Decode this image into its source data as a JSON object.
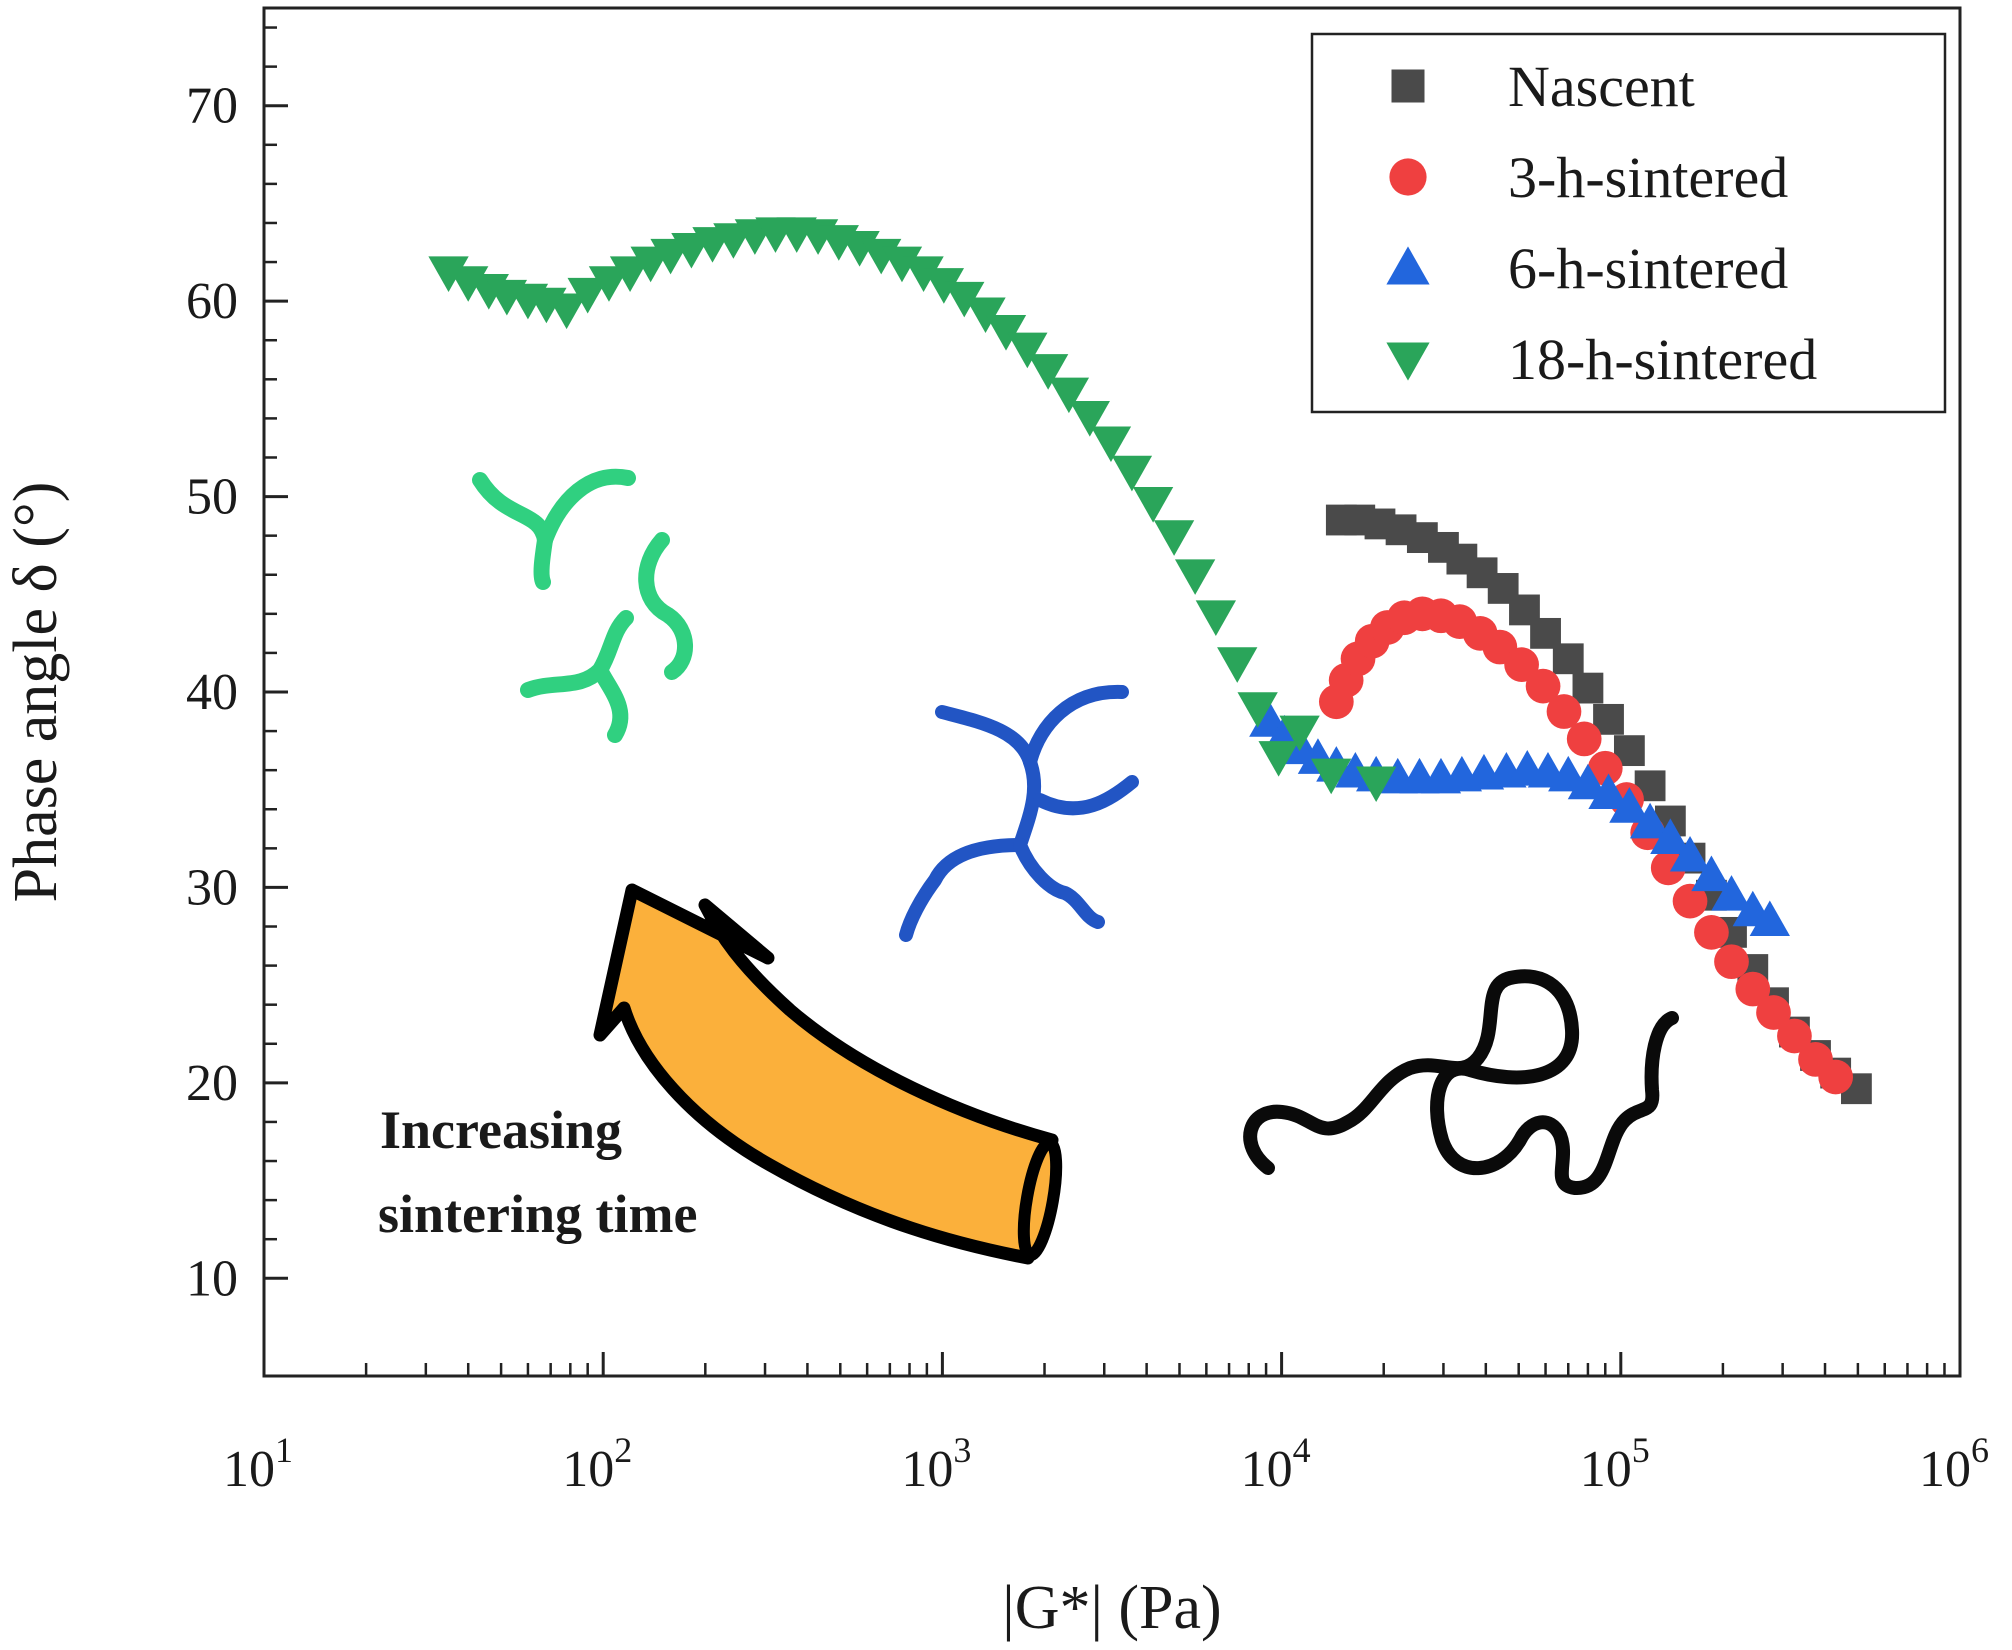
{
  "chart_data": {
    "type": "scatter",
    "xlabel": "|G*| (Pa)",
    "ylabel": "Phase angle δ (°)",
    "x_scale": "log",
    "xlim": [
      10,
      1000000
    ],
    "ylim": [
      5,
      75
    ],
    "x_ticks": [
      {
        "value": 10,
        "base": "10",
        "exp": "1"
      },
      {
        "value": 100,
        "base": "10",
        "exp": "2"
      },
      {
        "value": 1000,
        "base": "10",
        "exp": "3"
      },
      {
        "value": 10000,
        "base": "10",
        "exp": "4"
      },
      {
        "value": 100000,
        "base": "10",
        "exp": "5"
      },
      {
        "value": 1000000,
        "base": "10",
        "exp": "6"
      }
    ],
    "y_ticks": [
      "10",
      "20",
      "30",
      "40",
      "50",
      "60",
      "70"
    ],
    "legend_position": "top-right",
    "series": [
      {
        "name": "Nascent",
        "marker": "square",
        "color": "#4a4a4a",
        "x": [
          15000,
          17000,
          19500,
          22500,
          26000,
          30000,
          34000,
          39000,
          45000,
          52000,
          60000,
          70000,
          80000,
          92000,
          106000,
          122000,
          140000,
          160000,
          185000,
          212000,
          245000,
          282000,
          325000,
          375000,
          430000,
          495000
        ],
        "y": [
          48.8,
          48.8,
          48.6,
          48.3,
          47.9,
          47.4,
          46.8,
          46.1,
          45.3,
          44.2,
          43.0,
          41.7,
          40.2,
          38.6,
          37.0,
          35.2,
          33.4,
          31.5,
          29.6,
          27.7,
          25.8,
          24.1,
          22.6,
          21.4,
          20.5,
          19.7
        ]
      },
      {
        "name": "3-h-sintered",
        "marker": "circle",
        "color": "#ef4040",
        "x": [
          14500,
          15500,
          16800,
          18500,
          20500,
          23000,
          26000,
          29500,
          33500,
          38500,
          44000,
          51000,
          59000,
          68000,
          78000,
          90000,
          104000,
          120000,
          138000,
          160000,
          185000,
          212000,
          245000,
          282000,
          325000,
          375000,
          430000
        ],
        "y": [
          39.5,
          40.6,
          41.7,
          42.6,
          43.3,
          43.8,
          44.0,
          43.9,
          43.6,
          43.0,
          42.3,
          41.4,
          40.3,
          39.0,
          37.6,
          36.1,
          34.5,
          32.8,
          31.0,
          29.3,
          27.7,
          26.2,
          24.8,
          23.6,
          22.4,
          21.2,
          20.3
        ]
      },
      {
        "name": "6-h-sintered",
        "marker": "triangle-up",
        "color": "#2266dd",
        "x": [
          9200,
          10200,
          11400,
          12800,
          14500,
          16500,
          19000,
          22000,
          25500,
          29500,
          34000,
          39500,
          46000,
          53000,
          61000,
          70000,
          80000,
          92000,
          106000,
          122000,
          140000,
          160000,
          185000,
          212000,
          245000,
          275000
        ],
        "y": [
          38.5,
          37.8,
          37.1,
          36.6,
          36.2,
          35.9,
          35.7,
          35.6,
          35.6,
          35.6,
          35.7,
          35.8,
          35.9,
          36.0,
          35.9,
          35.7,
          35.3,
          34.8,
          34.1,
          33.3,
          32.5,
          31.6,
          30.6,
          29.6,
          28.8,
          28.3
        ]
      },
      {
        "name": "18-h-sintered",
        "marker": "triangle-down",
        "color": "#2aa55a",
        "x": [
          35,
          40,
          46,
          52,
          60,
          68,
          78,
          90,
          104,
          120,
          138,
          158,
          182,
          210,
          242,
          280,
          322,
          372,
          430,
          495,
          570,
          660,
          760,
          880,
          1010,
          1160,
          1340,
          1540,
          1780,
          2050,
          2360,
          2720,
          3140,
          3620,
          4180,
          4820,
          5560,
          6400,
          7400,
          8500,
          9800,
          11300,
          14000,
          19000
        ],
        "y": [
          61.5,
          61.0,
          60.6,
          60.3,
          60.1,
          59.9,
          59.6,
          60.4,
          61.0,
          61.5,
          62.0,
          62.4,
          62.7,
          63.0,
          63.2,
          63.4,
          63.5,
          63.5,
          63.4,
          63.1,
          62.8,
          62.4,
          62.0,
          61.5,
          60.9,
          60.2,
          59.4,
          58.5,
          57.6,
          56.5,
          55.3,
          54.1,
          52.8,
          51.3,
          49.7,
          48.0,
          46.0,
          43.9,
          41.5,
          39.2,
          36.7,
          38.0,
          35.8,
          35.4
        ]
      }
    ],
    "annotations": [
      {
        "kind": "text",
        "lines": [
          "Increasing",
          "sintering time"
        ]
      },
      {
        "kind": "arrow",
        "color": "#fbb03b",
        "meaning": "increasing sintering time"
      },
      {
        "kind": "chain-icon",
        "color": "#30d080",
        "meaning": "short branched chains"
      },
      {
        "kind": "chain-icon",
        "color": "#2255c4",
        "meaning": "branched chain"
      },
      {
        "kind": "chain-icon",
        "color": "#000000",
        "meaning": "long linear chain"
      }
    ]
  }
}
